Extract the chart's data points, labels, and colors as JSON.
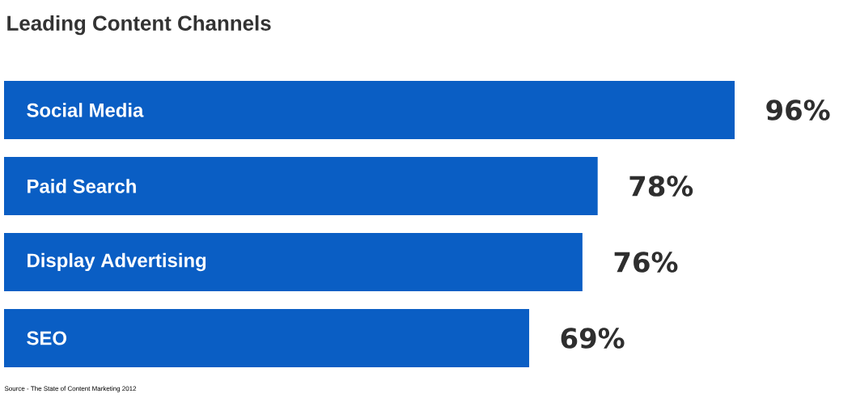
{
  "chart_data": {
    "type": "bar",
    "orientation": "horizontal",
    "title": "Leading Content Channels",
    "categories": [
      "Social Media",
      "Paid Search",
      "Display Advertising",
      "SEO"
    ],
    "values": [
      96,
      78,
      76,
      69
    ],
    "value_labels": [
      "96%",
      "78%",
      "76%",
      "69%"
    ],
    "color": "#0a5ec4",
    "annotations": [
      "Source - The State of Content Marketing 2012"
    ]
  }
}
